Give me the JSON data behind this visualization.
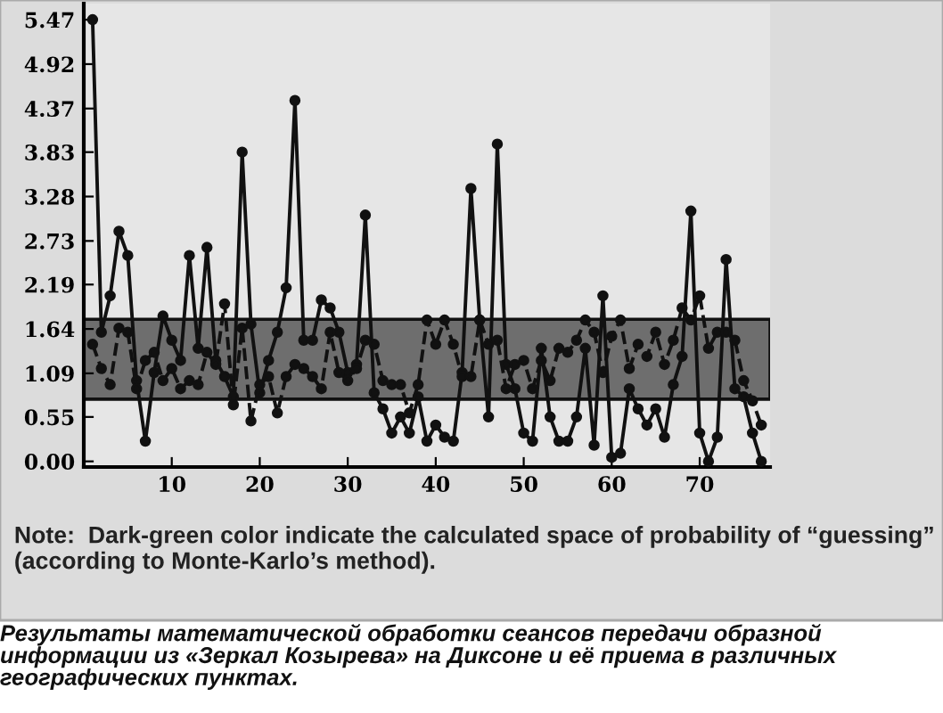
{
  "chart_data": {
    "type": "line",
    "x": [
      1,
      2,
      3,
      4,
      5,
      6,
      7,
      8,
      9,
      10,
      11,
      12,
      13,
      14,
      15,
      16,
      17,
      18,
      19,
      20,
      21,
      22,
      23,
      24,
      25,
      26,
      27,
      28,
      29,
      30,
      31,
      32,
      33,
      34,
      35,
      36,
      37,
      38,
      39,
      40,
      41,
      42,
      43,
      44,
      45,
      46,
      47,
      48,
      49,
      50,
      51,
      52,
      53,
      54,
      55,
      56,
      57,
      58,
      59,
      60,
      61,
      62,
      63,
      64,
      65,
      66,
      67,
      68,
      69,
      70,
      71,
      72,
      73,
      74,
      75,
      76,
      77
    ],
    "series": [
      {
        "color": "#111111",
        "line_style": "solid",
        "values": [
          5.47,
          1.6,
          2.05,
          2.85,
          2.55,
          1.0,
          0.25,
          1.1,
          1.8,
          1.5,
          1.25,
          2.55,
          1.4,
          2.65,
          1.25,
          1.05,
          0.8,
          3.83,
          1.7,
          0.85,
          1.25,
          1.6,
          2.15,
          4.47,
          1.5,
          1.5,
          2.0,
          1.9,
          1.6,
          1.1,
          1.2,
          3.05,
          0.85,
          0.65,
          0.35,
          0.55,
          0.35,
          0.8,
          0.25,
          0.45,
          0.3,
          0.25,
          1.1,
          3.38,
          1.75,
          0.55,
          3.93,
          1.2,
          0.9,
          0.35,
          0.25,
          1.4,
          0.55,
          0.25,
          0.25,
          0.55,
          1.4,
          0.2,
          2.05,
          0.05,
          0.1,
          0.9,
          0.65,
          0.45,
          0.65,
          0.3,
          0.95,
          1.3,
          3.1,
          0.35,
          0.0,
          0.3,
          2.5,
          0.9,
          0.8,
          0.35,
          0.0
        ]
      },
      {
        "color": "#111111",
        "line_style": "dashed",
        "values": [
          1.45,
          1.15,
          0.95,
          1.65,
          1.6,
          0.9,
          1.25,
          1.35,
          1.0,
          1.15,
          0.9,
          1.0,
          0.95,
          1.35,
          1.2,
          1.95,
          0.7,
          1.65,
          0.5,
          0.95,
          1.05,
          0.6,
          1.05,
          1.2,
          1.15,
          1.05,
          0.9,
          1.6,
          1.1,
          1.0,
          1.15,
          1.5,
          1.45,
          1.0,
          0.95,
          0.95,
          0.6,
          0.95,
          1.75,
          1.45,
          1.75,
          1.45,
          1.05,
          1.05,
          1.75,
          1.45,
          1.5,
          0.9,
          1.2,
          1.25,
          0.9,
          1.25,
          1.0,
          1.4,
          1.35,
          1.5,
          1.75,
          1.6,
          1.1,
          1.55,
          1.75,
          1.15,
          1.45,
          1.3,
          1.6,
          1.2,
          1.5,
          1.9,
          1.75,
          2.05,
          1.4,
          1.6,
          1.6,
          1.5,
          1.0,
          0.75,
          0.45
        ]
      }
    ],
    "marker": "circle",
    "bands": [
      {
        "axis": "y",
        "from": 0.77,
        "to": 1.76,
        "color": "#6e6e6e"
      }
    ],
    "xlim": [
      0,
      78
    ],
    "ylim": [
      -0.07,
      5.67
    ],
    "xticks": [
      10,
      20,
      30,
      40,
      50,
      60,
      70
    ],
    "yticks": [
      {
        "value": 0,
        "label": "0.00"
      },
      {
        "value": 0.55,
        "label": "0.55"
      },
      {
        "value": 1.09,
        "label": "1.09"
      },
      {
        "value": 1.64,
        "label": "1.64"
      },
      {
        "value": 2.19,
        "label": "2.19"
      },
      {
        "value": 2.73,
        "label": "2.73"
      },
      {
        "value": 3.28,
        "label": "3.28"
      },
      {
        "value": 3.83,
        "label": "3.83"
      },
      {
        "value": 4.37,
        "label": "4.37"
      },
      {
        "value": 4.92,
        "label": "4.92"
      },
      {
        "value": 5.47,
        "label": "5.47"
      }
    ],
    "grid": false,
    "legend": false,
    "annotations": [
      "Note:  Dark-green color indicate the calculated space of probability of “guessing” (according to Monte-Karlo’s method).",
      "Результаты математической обработки сеансов передачи образной информации из «Зеркал Козырева» на Диксоне и её приема в различных географических пунктах."
    ]
  }
}
